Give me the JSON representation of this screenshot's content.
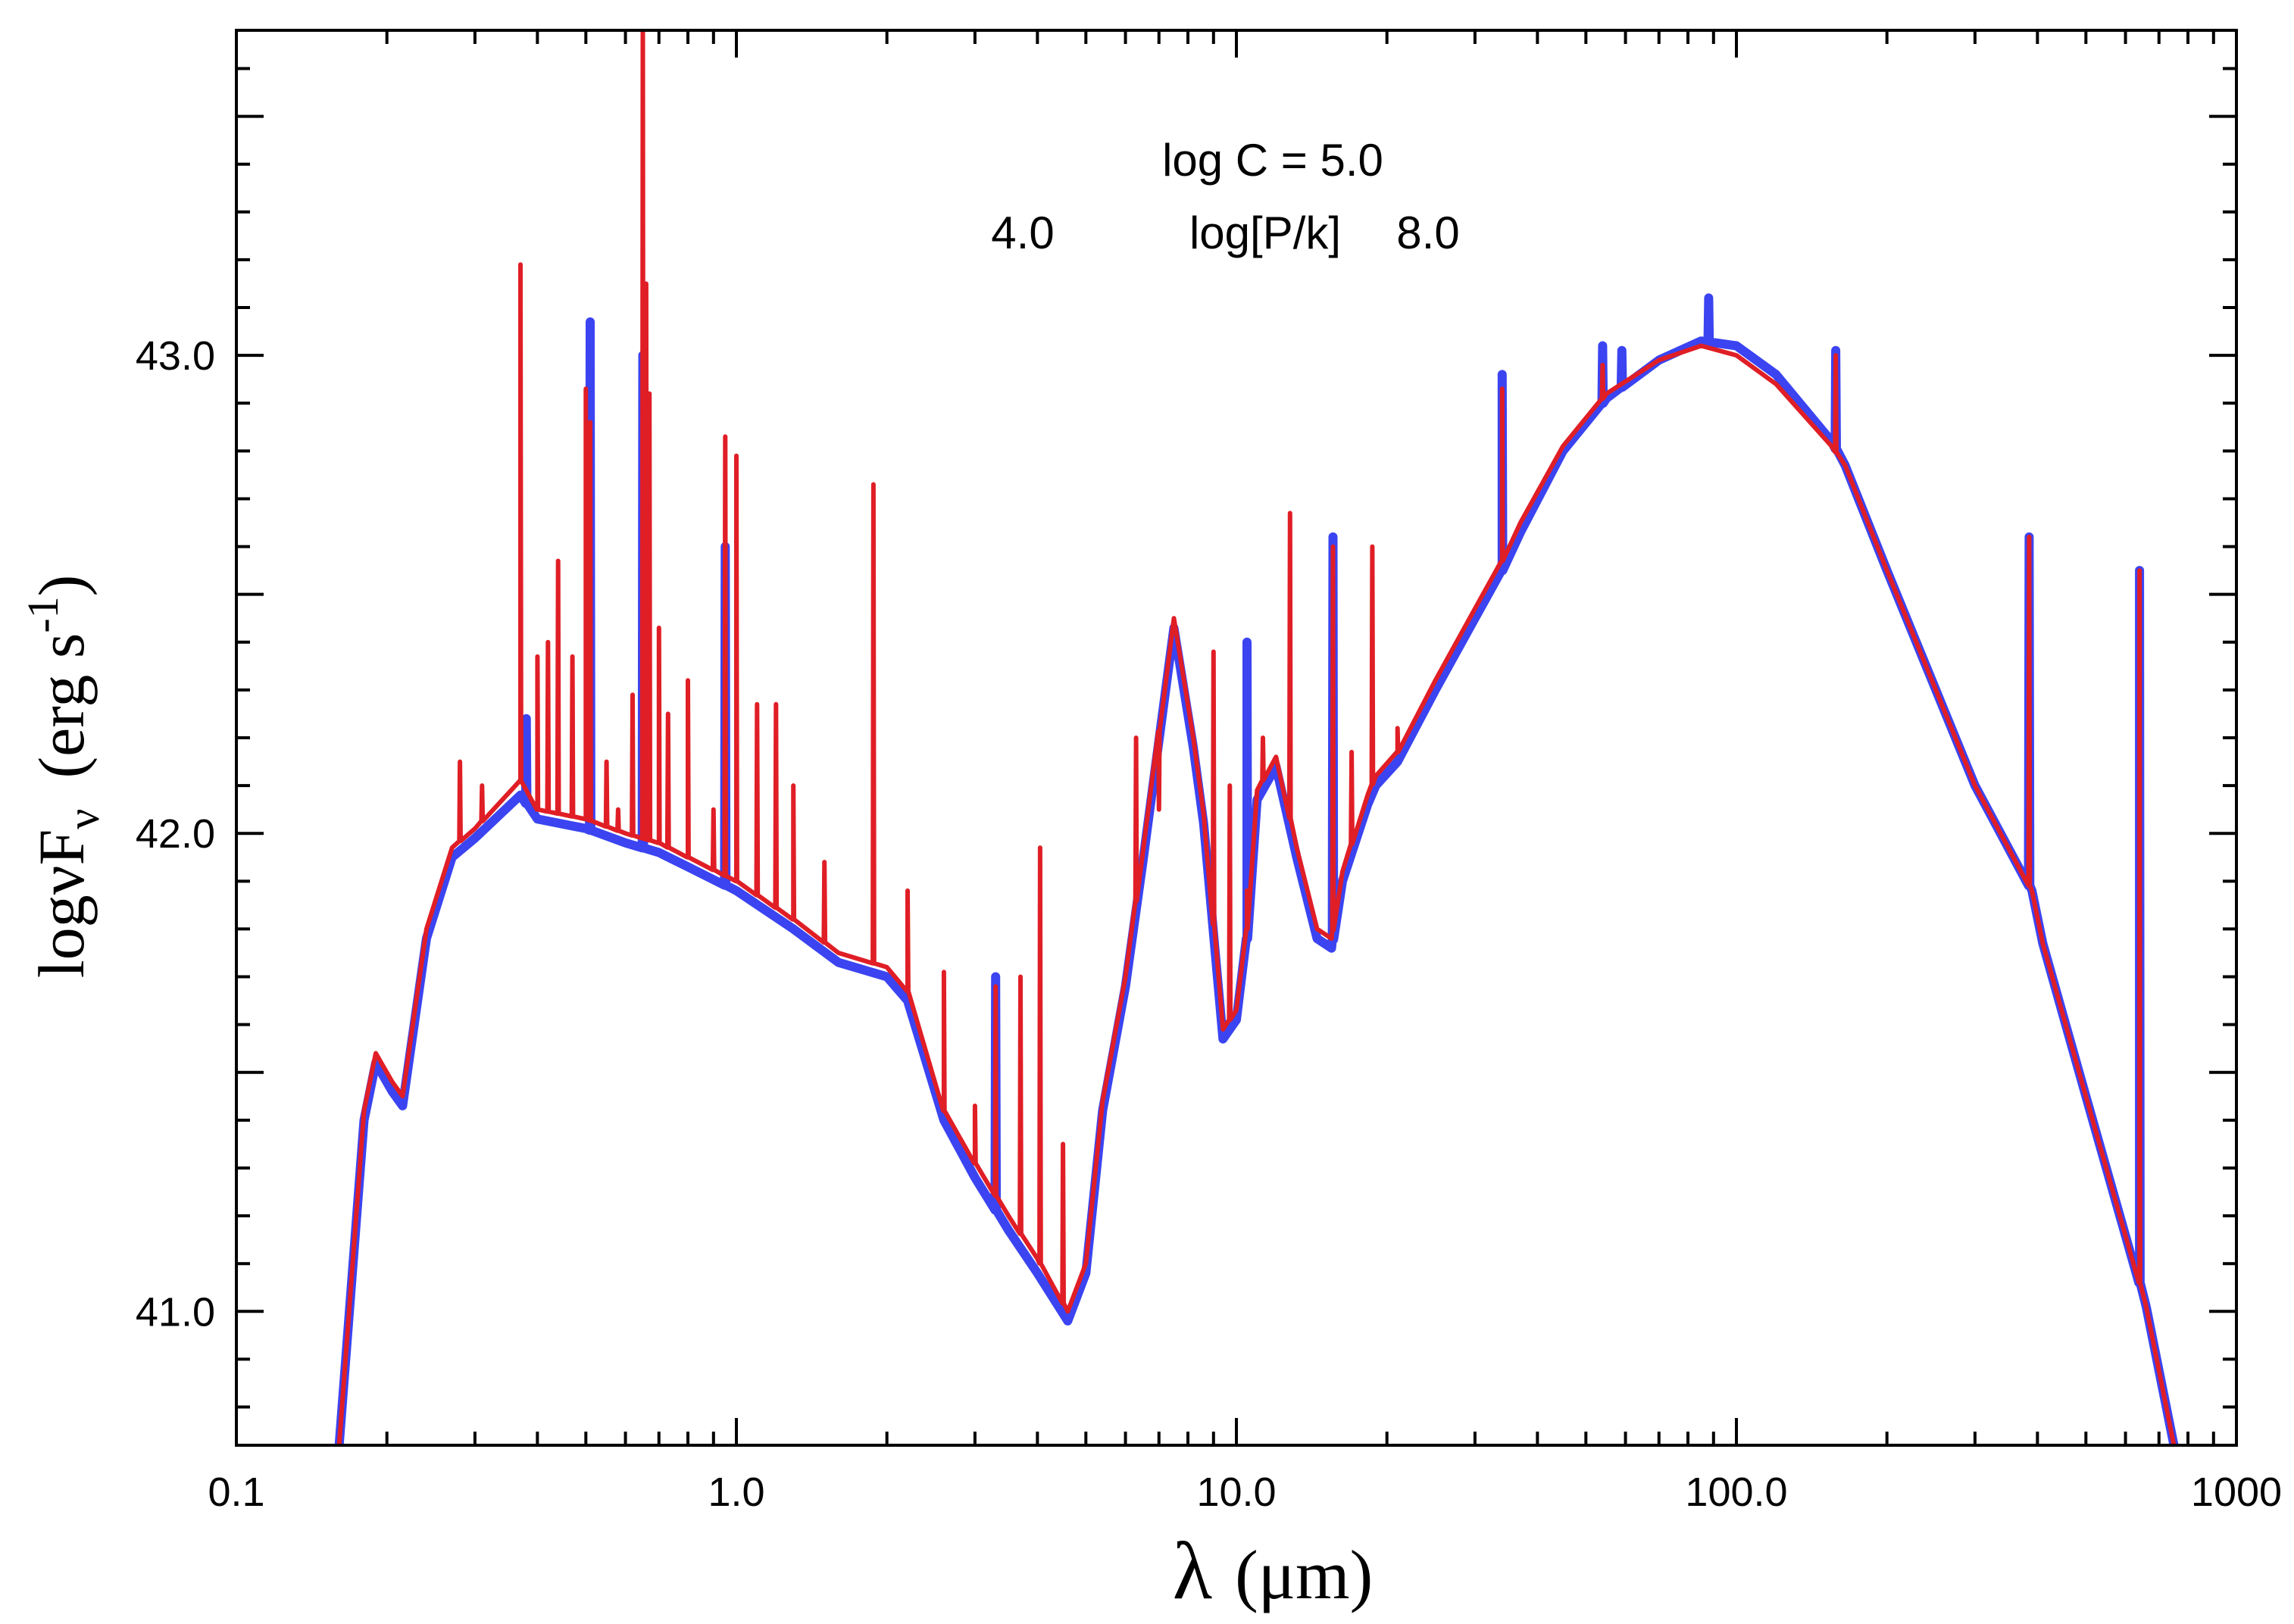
{
  "chart_data": {
    "type": "line",
    "title": "",
    "xlabel": {
      "symbol": "λ",
      "unit": "(μm)"
    },
    "ylabel": {
      "prefix": "logνF",
      "sub": "ν",
      "unit": "(erg s",
      "sup": "-1",
      "close": ")"
    },
    "xscale": "log",
    "xlim": [
      0.1,
      1000
    ],
    "ylim": [
      40.72,
      43.68
    ],
    "xticks": [
      {
        "value": 0.1,
        "label": "0.1"
      },
      {
        "value": 1,
        "label": "1.0"
      },
      {
        "value": 10,
        "label": "10.0"
      },
      {
        "value": 100,
        "label": "100.0"
      },
      {
        "value": 1000,
        "label": "1000"
      }
    ],
    "yticks": [
      {
        "value": 41,
        "label": "41.0"
      },
      {
        "value": 42,
        "label": "42.0"
      },
      {
        "value": 43,
        "label": "43.0"
      }
    ],
    "yminor_step": 0.1,
    "annotations": {
      "line1": "log C = 5.0",
      "low": "4.0",
      "mid": "log[P/k]",
      "high": "8.0"
    },
    "series": [
      {
        "name": "log[P/k] = 4.0",
        "color": "#3b44f0",
        "width": 12,
        "continuum": [
          [
            0.16,
            40.7
          ],
          [
            0.18,
            41.4
          ],
          [
            0.19,
            41.52
          ],
          [
            0.205,
            41.46
          ],
          [
            0.215,
            41.43
          ],
          [
            0.24,
            41.78
          ],
          [
            0.27,
            41.95
          ],
          [
            0.3,
            41.99
          ],
          [
            0.37,
            42.08
          ],
          [
            0.4,
            42.03
          ],
          [
            0.5,
            42.01
          ],
          [
            0.6,
            41.98
          ],
          [
            0.7,
            41.96
          ],
          [
            0.8,
            41.93
          ],
          [
            1.0,
            41.88
          ],
          [
            1.3,
            41.8
          ],
          [
            1.6,
            41.73
          ],
          [
            2.0,
            41.7
          ],
          [
            2.2,
            41.65
          ],
          [
            2.6,
            41.4
          ],
          [
            3.0,
            41.28
          ],
          [
            3.5,
            41.17
          ],
          [
            4.0,
            41.08
          ],
          [
            4.6,
            40.98
          ],
          [
            5.0,
            41.08
          ],
          [
            5.4,
            41.42
          ],
          [
            6.0,
            41.68
          ],
          [
            6.5,
            41.94
          ],
          [
            7.5,
            42.43
          ],
          [
            8.2,
            42.18
          ],
          [
            8.6,
            42.02
          ],
          [
            9.4,
            41.57
          ],
          [
            10.0,
            41.61
          ],
          [
            10.5,
            41.78
          ],
          [
            11.0,
            42.07
          ],
          [
            12.0,
            42.14
          ],
          [
            13.2,
            41.95
          ],
          [
            14.5,
            41.78
          ],
          [
            15.5,
            41.76
          ],
          [
            16.3,
            41.9
          ],
          [
            18.3,
            42.06
          ],
          [
            19.0,
            42.1
          ],
          [
            21.0,
            42.15
          ],
          [
            25.0,
            42.3
          ],
          [
            30.0,
            42.45
          ],
          [
            34.0,
            42.55
          ],
          [
            37.0,
            42.63
          ],
          [
            45.0,
            42.8
          ],
          [
            55.0,
            42.91
          ],
          [
            70.0,
            42.99
          ],
          [
            85.0,
            43.03
          ],
          [
            100.0,
            43.02
          ],
          [
            120.0,
            42.96
          ],
          [
            155.0,
            42.82
          ],
          [
            165.0,
            42.77
          ],
          [
            200.0,
            42.55
          ],
          [
            300.0,
            42.1
          ],
          [
            390.0,
            41.88
          ],
          [
            410.0,
            41.77
          ],
          [
            500.0,
            41.45
          ],
          [
            640.0,
            41.06
          ],
          [
            660.0,
            41.01
          ],
          [
            750.0,
            40.72
          ]
        ],
        "peaks": [
          [
            0.38,
            42.24
          ],
          [
            0.51,
            43.07
          ],
          [
            0.65,
            43.0
          ],
          [
            0.95,
            42.6
          ],
          [
            3.3,
            41.7
          ],
          [
            10.5,
            42.4
          ],
          [
            15.6,
            42.62
          ],
          [
            34.0,
            42.96
          ],
          [
            54.0,
            43.02
          ],
          [
            59.0,
            43.01
          ],
          [
            88.0,
            43.12
          ],
          [
            158.0,
            43.01
          ],
          [
            385.0,
            42.62
          ],
          [
            640.0,
            42.55
          ]
        ]
      },
      {
        "name": "log[P/k] = 8.0",
        "color": "#e01e26",
        "width": 6,
        "continuum": [
          [
            0.16,
            40.7
          ],
          [
            0.18,
            41.42
          ],
          [
            0.19,
            41.54
          ],
          [
            0.205,
            41.48
          ],
          [
            0.215,
            41.45
          ],
          [
            0.24,
            41.8
          ],
          [
            0.27,
            41.97
          ],
          [
            0.3,
            42.01
          ],
          [
            0.37,
            42.11
          ],
          [
            0.4,
            42.05
          ],
          [
            0.5,
            42.03
          ],
          [
            0.6,
            42.0
          ],
          [
            0.7,
            41.98
          ],
          [
            0.8,
            41.95
          ],
          [
            1.0,
            41.9
          ],
          [
            1.3,
            41.82
          ],
          [
            1.6,
            41.75
          ],
          [
            2.0,
            41.72
          ],
          [
            2.2,
            41.67
          ],
          [
            2.6,
            41.42
          ],
          [
            3.0,
            41.31
          ],
          [
            3.5,
            41.2
          ],
          [
            4.0,
            41.11
          ],
          [
            4.6,
            41.0
          ],
          [
            5.0,
            41.1
          ],
          [
            5.4,
            41.44
          ],
          [
            6.0,
            41.7
          ],
          [
            6.5,
            41.96
          ],
          [
            7.5,
            42.45
          ],
          [
            8.2,
            42.2
          ],
          [
            8.6,
            42.04
          ],
          [
            9.4,
            41.59
          ],
          [
            10.0,
            41.63
          ],
          [
            10.5,
            41.8
          ],
          [
            11.0,
            42.09
          ],
          [
            12.0,
            42.16
          ],
          [
            13.2,
            41.97
          ],
          [
            14.5,
            41.8
          ],
          [
            15.5,
            41.78
          ],
          [
            16.3,
            41.92
          ],
          [
            18.3,
            42.08
          ],
          [
            19.0,
            42.12
          ],
          [
            21.0,
            42.17
          ],
          [
            25.0,
            42.32
          ],
          [
            30.0,
            42.47
          ],
          [
            34.0,
            42.57
          ],
          [
            37.0,
            42.65
          ],
          [
            45.0,
            42.81
          ],
          [
            55.0,
            42.92
          ],
          [
            70.0,
            42.99
          ],
          [
            85.0,
            43.02
          ],
          [
            100.0,
            43.0
          ],
          [
            120.0,
            42.94
          ],
          [
            155.0,
            42.81
          ],
          [
            165.0,
            42.77
          ],
          [
            200.0,
            42.55
          ],
          [
            300.0,
            42.1
          ],
          [
            390.0,
            41.88
          ],
          [
            410.0,
            41.77
          ],
          [
            500.0,
            41.45
          ],
          [
            640.0,
            41.06
          ],
          [
            660.0,
            41.01
          ],
          [
            750.0,
            40.72
          ]
        ],
        "peaks": [
          [
            0.28,
            42.15
          ],
          [
            0.31,
            42.1
          ],
          [
            0.37,
            43.19
          ],
          [
            0.4,
            42.37
          ],
          [
            0.42,
            42.4
          ],
          [
            0.44,
            42.57
          ],
          [
            0.47,
            42.37
          ],
          [
            0.5,
            42.93
          ],
          [
            0.51,
            42.86
          ],
          [
            0.55,
            42.15
          ],
          [
            0.58,
            42.05
          ],
          [
            0.62,
            42.29
          ],
          [
            0.65,
            43.68
          ],
          [
            0.66,
            43.15
          ],
          [
            0.67,
            42.92
          ],
          [
            0.7,
            42.43
          ],
          [
            0.73,
            42.25
          ],
          [
            0.8,
            42.32
          ],
          [
            0.9,
            42.05
          ],
          [
            0.95,
            42.83
          ],
          [
            1.0,
            42.79
          ],
          [
            1.1,
            42.27
          ],
          [
            1.2,
            42.27
          ],
          [
            1.3,
            42.1
          ],
          [
            1.5,
            41.94
          ],
          [
            1.88,
            42.73
          ],
          [
            2.2,
            41.88
          ],
          [
            2.6,
            41.71
          ],
          [
            3.0,
            41.43
          ],
          [
            3.3,
            41.68
          ],
          [
            3.7,
            41.7
          ],
          [
            4.05,
            41.97
          ],
          [
            4.5,
            41.35
          ],
          [
            6.3,
            42.2
          ],
          [
            7.0,
            42.05
          ],
          [
            9.0,
            42.38
          ],
          [
            9.7,
            42.1
          ],
          [
            10.5,
            41.88
          ],
          [
            11.3,
            42.2
          ],
          [
            12.8,
            42.67
          ],
          [
            15.6,
            42.6
          ],
          [
            17.0,
            42.17
          ],
          [
            18.7,
            42.6
          ],
          [
            21.0,
            42.22
          ],
          [
            34.0,
            42.93
          ],
          [
            54.0,
            42.98
          ],
          [
            158.0,
            43.0
          ],
          [
            385.0,
            42.62
          ],
          [
            640.0,
            42.55
          ]
        ]
      }
    ]
  }
}
